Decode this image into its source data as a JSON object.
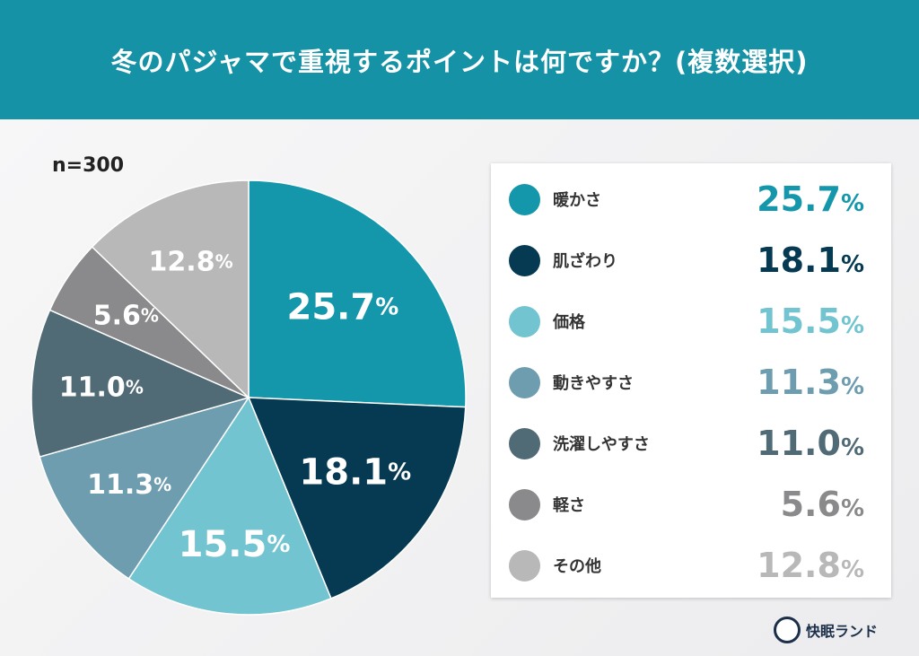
{
  "title": "冬のパジャマで重視するポイントは何ですか？(複数選択)",
  "sample": "n=300",
  "brand": "快眠ランド",
  "chart_data": {
    "type": "pie",
    "title": "冬のパジャマで重視するポイントは何ですか？(複数選択)",
    "unit": "%",
    "categories": [
      "暖かさ",
      "肌ざわり",
      "価格",
      "動きやすさ",
      "洗濯しやすさ",
      "軽さ",
      "その他"
    ],
    "values": [
      25.7,
      18.1,
      15.5,
      11.3,
      11.0,
      5.6,
      12.8
    ],
    "labels": [
      "25.7",
      "18.1",
      "15.5",
      "11.3",
      "11.0",
      "5.6",
      "12.8"
    ],
    "colors": [
      "#1597ab",
      "#053a52",
      "#72c4d0",
      "#6f9db0",
      "#506b75",
      "#8a8a8c",
      "#b8b8b8"
    ],
    "legend_placement": "right"
  }
}
